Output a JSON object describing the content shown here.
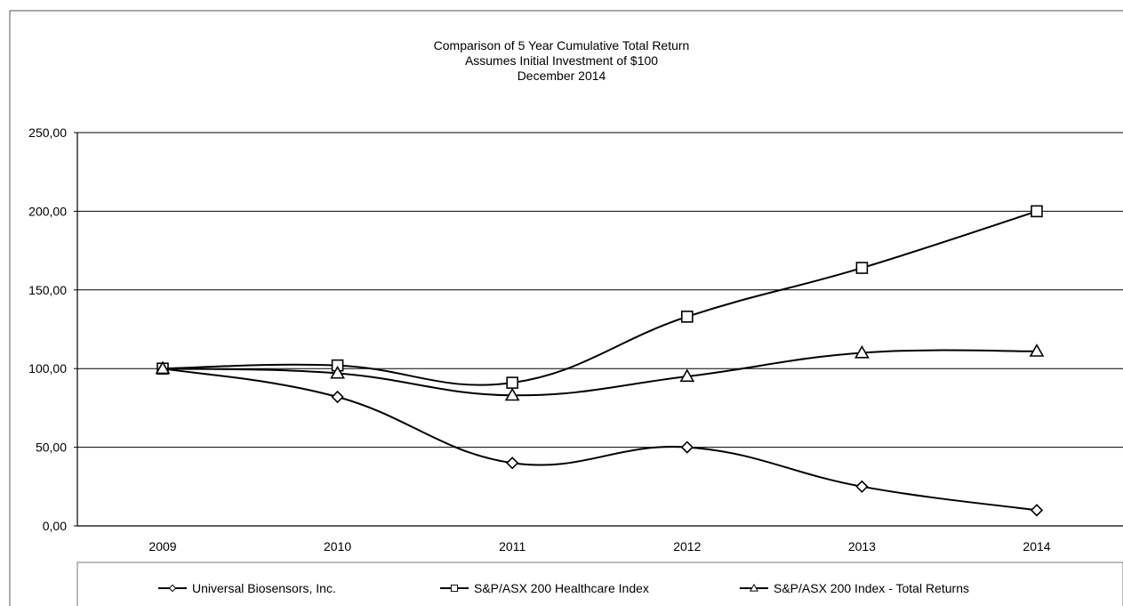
{
  "chart_data": {
    "type": "line",
    "title": [
      "Comparison of 5 Year Cumulative Total Return",
      "Assumes Initial Investment of $100",
      "December 2014"
    ],
    "xlabel": "",
    "ylabel": "",
    "categories": [
      "2009",
      "2010",
      "2011",
      "2012",
      "2013",
      "2014"
    ],
    "ylim": [
      0,
      250
    ],
    "yticks": [
      0,
      50,
      100,
      150,
      200,
      250
    ],
    "ytick_labels": [
      "0,00",
      "50,00",
      "100,00",
      "150,00",
      "200,00",
      "250,00"
    ],
    "grid": true,
    "smooth": true,
    "legend_position": "bottom",
    "series": [
      {
        "name": "Universal Biosensors, Inc.",
        "marker": "diamond",
        "color": "#000000",
        "values": [
          100,
          82,
          40,
          50,
          25,
          10
        ]
      },
      {
        "name": "S&P/ASX 200 Healthcare Index",
        "marker": "square",
        "color": "#000000",
        "values": [
          100,
          102,
          91,
          133,
          164,
          200
        ]
      },
      {
        "name": "S&P/ASX  200 Index - Total Returns",
        "marker": "triangle",
        "color": "#000000",
        "values": [
          100,
          97,
          83,
          95,
          110,
          111
        ]
      }
    ]
  }
}
